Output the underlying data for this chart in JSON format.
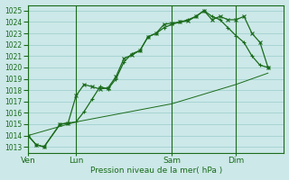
{
  "title": "Pression niveau de la mer( hPa )",
  "bg_color": "#cce8e8",
  "grid_color": "#99cccc",
  "line_color": "#1a6b1a",
  "ylim": [
    1012.5,
    1025.5
  ],
  "yticks": [
    1013,
    1014,
    1015,
    1016,
    1017,
    1018,
    1019,
    1020,
    1021,
    1022,
    1023,
    1024,
    1025
  ],
  "day_labels": [
    "Ven",
    "Lun",
    "Sam",
    "Dim"
  ],
  "day_positions": [
    0,
    6,
    18,
    26
  ],
  "xlim": [
    0,
    32
  ],
  "series1_x": [
    0,
    1,
    2,
    4,
    5,
    6,
    7,
    8,
    9,
    10,
    11,
    12,
    13,
    14,
    15,
    16,
    17,
    18,
    19,
    20,
    21,
    22,
    23,
    24,
    25,
    26,
    27,
    28,
    29,
    30
  ],
  "series1_y": [
    1014.0,
    1013.2,
    1013.0,
    1015.0,
    1015.1,
    1017.5,
    1018.5,
    1018.3,
    1018.1,
    1018.2,
    1019.2,
    1020.8,
    1021.1,
    1021.5,
    1022.7,
    1023.0,
    1023.8,
    1023.9,
    1024.0,
    1024.1,
    1024.5,
    1025.0,
    1024.2,
    1024.5,
    1024.2,
    1024.2,
    1024.5,
    1023.0,
    1022.2,
    1020.0
  ],
  "series2_x": [
    0,
    1,
    2,
    4,
    5,
    6,
    7,
    8,
    9,
    10,
    11,
    12,
    13,
    14,
    15,
    16,
    17,
    18,
    19,
    20,
    21,
    22,
    23,
    24,
    25,
    26,
    27,
    28,
    29,
    30
  ],
  "series2_y": [
    1014.0,
    1013.2,
    1013.0,
    1015.0,
    1015.1,
    1015.2,
    1016.1,
    1017.2,
    1018.3,
    1018.1,
    1019.0,
    1020.5,
    1021.2,
    1021.5,
    1022.7,
    1023.0,
    1023.5,
    1023.8,
    1024.0,
    1024.2,
    1024.5,
    1025.0,
    1024.5,
    1024.2,
    1023.5,
    1022.8,
    1022.2,
    1021.0,
    1020.2,
    1020.0
  ],
  "series3_x": [
    0,
    6,
    18,
    26,
    30
  ],
  "series3_y": [
    1014.0,
    1015.2,
    1016.8,
    1018.5,
    1019.5
  ]
}
